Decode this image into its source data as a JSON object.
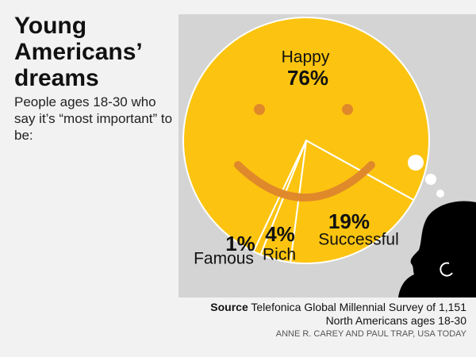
{
  "chart_data": {
    "type": "pie",
    "title": "Young Americans’ dreams",
    "subtitle": "People ages 18-30 who say it’s “most important” to be:",
    "categories": [
      "Successful",
      "Rich",
      "Famous",
      "Happy"
    ],
    "values": [
      19,
      4,
      1,
      76
    ],
    "value_labels": [
      "19%",
      "4%",
      "1%",
      "76%"
    ],
    "color": "#fcc410",
    "source_label": "Source",
    "source_text": "Telefonica Global Millennial Survey of 1,151 North Americans ages 18-30",
    "credit": "ANNE R. CAREY AND PAUL TRAP, USA TODAY"
  }
}
